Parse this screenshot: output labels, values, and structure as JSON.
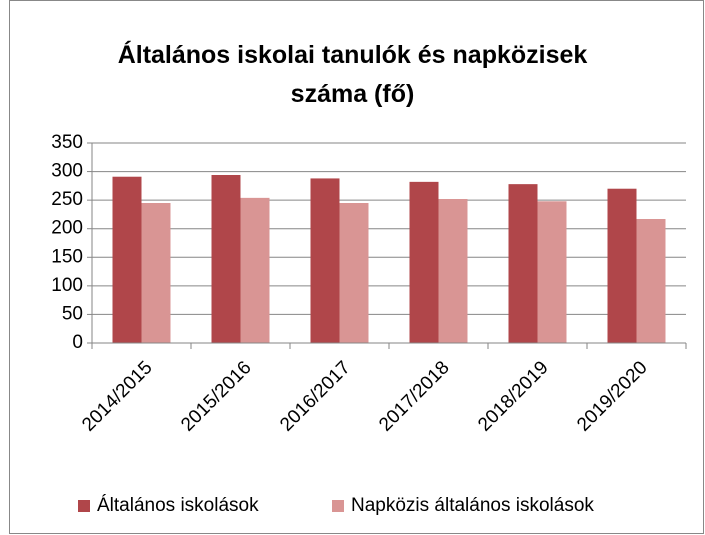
{
  "chart_data": {
    "type": "bar",
    "title": "Általános iskolai tanulók és napközisek száma (fő)",
    "categories": [
      "2014/2015",
      "2015/2016",
      "2016/2017",
      "2017/2018",
      "2018/2019",
      "2019/2020"
    ],
    "series": [
      {
        "name": "Általános iskolások",
        "color": "#b0464a",
        "values": [
          291,
          294,
          288,
          282,
          278,
          270
        ]
      },
      {
        "name": "Napközis általános iskolások",
        "color": "#d99594",
        "values": [
          245,
          254,
          245,
          252,
          248,
          217
        ]
      }
    ],
    "ylim": [
      0,
      350
    ],
    "yticks": [
      0,
      50,
      100,
      150,
      200,
      250,
      300,
      350
    ],
    "grid": true,
    "legend": "bottom"
  }
}
